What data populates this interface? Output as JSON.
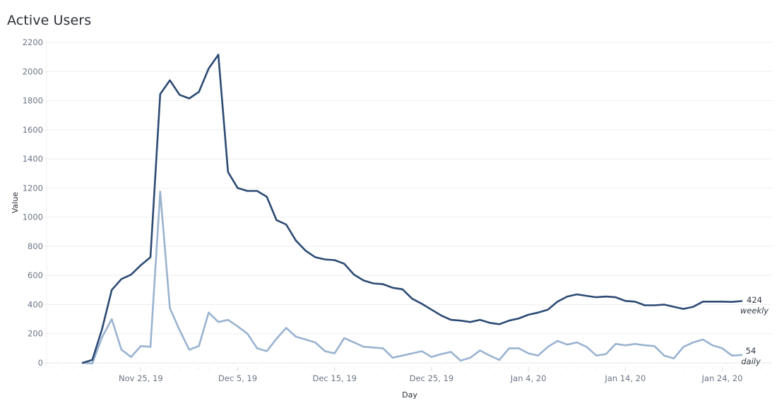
{
  "title": "Active Users",
  "chart_data": {
    "type": "line",
    "title": "Active Users",
    "xlabel": "Day",
    "ylabel": "Value",
    "ylim": [
      0,
      2200
    ],
    "y_ticks": [
      0,
      200,
      400,
      600,
      800,
      1000,
      1200,
      1400,
      1600,
      1800,
      2000,
      2200
    ],
    "x_tick_labels": [
      "Nov 25, 19",
      "Dec 5, 19",
      "Dec 15, 19",
      "Dec 25, 19",
      "Jan 4, 20",
      "Jan 14, 20",
      "Jan 24, 20"
    ],
    "x_tick_day_index": [
      6,
      16,
      26,
      36,
      46,
      56,
      66
    ],
    "x_start": "Nov 19, 19",
    "x_end": "Jan 28, 20",
    "grid": true,
    "legend_position": "end-of-line labels",
    "colors": {
      "weekly": "#2c4a73",
      "daily": "#9ab3d0",
      "grid": "#eeeeee"
    },
    "series": [
      {
        "name": "weekly",
        "end_label_value": "424",
        "values": [
          0,
          20,
          230,
          500,
          575,
          605,
          670,
          725,
          1845,
          1940,
          1840,
          1815,
          1860,
          2020,
          2115,
          1310,
          1200,
          1180,
          1180,
          1140,
          980,
          950,
          840,
          770,
          725,
          710,
          705,
          680,
          605,
          565,
          545,
          540,
          515,
          505,
          440,
          405,
          365,
          325,
          295,
          290,
          280,
          295,
          275,
          265,
          290,
          305,
          330,
          345,
          365,
          420,
          455,
          470,
          460,
          450,
          455,
          450,
          425,
          420,
          395,
          395,
          400,
          385,
          370,
          385,
          420,
          420,
          420,
          418,
          424
        ]
      },
      {
        "name": "daily",
        "end_label_value": "54",
        "values": [
          0,
          -5,
          175,
          300,
          90,
          40,
          115,
          110,
          1175,
          375,
          225,
          90,
          115,
          345,
          280,
          295,
          250,
          200,
          100,
          80,
          165,
          240,
          180,
          160,
          140,
          80,
          65,
          170,
          140,
          110,
          105,
          100,
          35,
          50,
          65,
          80,
          40,
          60,
          75,
          15,
          35,
          85,
          50,
          20,
          100,
          100,
          65,
          50,
          110,
          150,
          125,
          140,
          110,
          50,
          60,
          130,
          120,
          130,
          120,
          115,
          50,
          30,
          110,
          140,
          160,
          120,
          100,
          50,
          54
        ]
      }
    ]
  },
  "axes": {
    "y_title": "Value",
    "x_title": "Day",
    "y_tick_labels": [
      "0",
      "200",
      "400",
      "600",
      "800",
      "1000",
      "1200",
      "1400",
      "1600",
      "1800",
      "2000",
      "2200"
    ]
  },
  "labels": {
    "weekly_value": "424",
    "weekly_name": "weekly",
    "daily_value": "54",
    "daily_name": "daily"
  }
}
